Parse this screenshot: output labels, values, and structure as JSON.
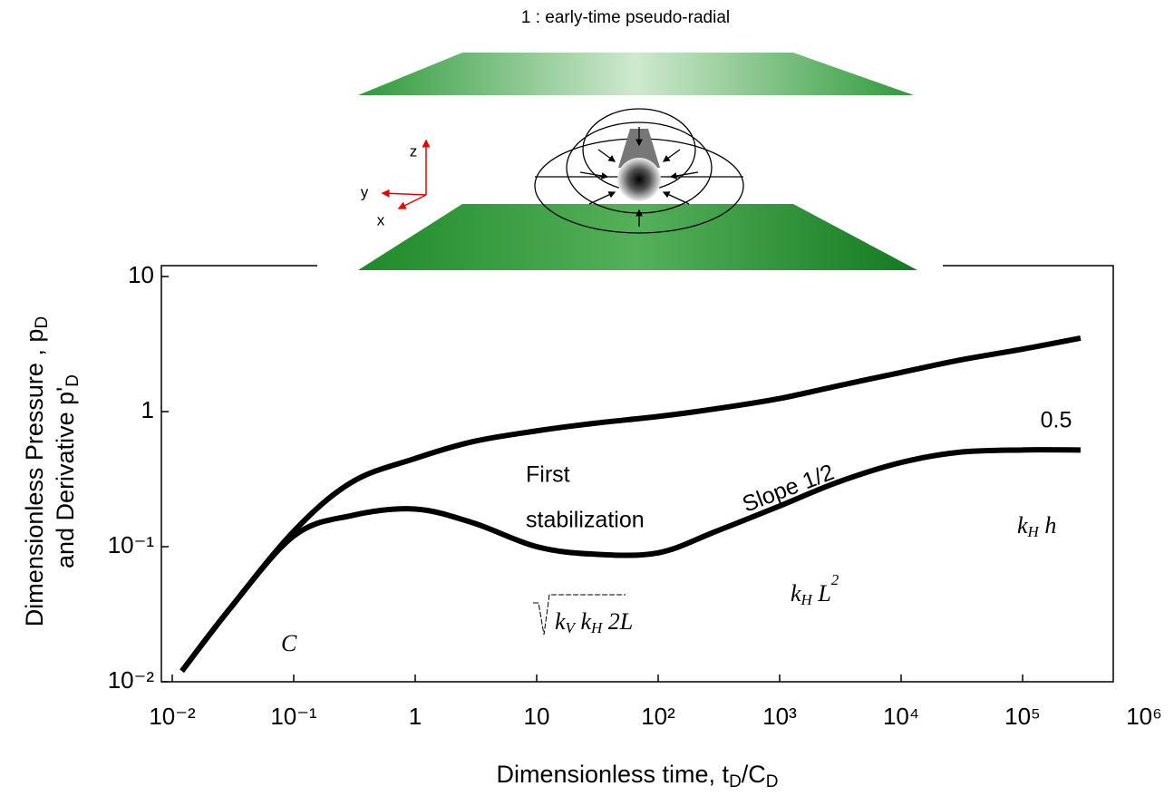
{
  "diagram": {
    "title": "1 :  early-time  pseudo-radial",
    "axes": [
      "z",
      "y",
      "x"
    ]
  },
  "chart_data": {
    "type": "line",
    "xlabel": [
      "Dimensionless time, t",
      "D",
      "/C",
      "D"
    ],
    "ylabel": [
      [
        "Dimensionless Pressure , p",
        "D"
      ],
      [
        "and Derivative p'",
        "D"
      ]
    ],
    "xscale": "log",
    "yscale": "log",
    "xlim": [
      0.01,
      1000000
    ],
    "ylim": [
      0.01,
      10
    ],
    "xticks": [
      {
        "value": 0.01,
        "label": "10⁻²"
      },
      {
        "value": 0.1,
        "label": "10⁻¹"
      },
      1,
      10,
      {
        "value": 100,
        "label": "10²"
      },
      {
        "value": 1000,
        "label": "10³"
      },
      {
        "value": 10000,
        "label": "10⁴"
      },
      {
        "value": 100000,
        "label": "10⁵"
      },
      {
        "value": 1000000,
        "label": "10⁶"
      }
    ],
    "yticks": [
      {
        "value": 0.01,
        "label": "10⁻²"
      },
      {
        "value": 0.1,
        "label": "10⁻¹"
      },
      1,
      10
    ],
    "x": [
      0.012,
      0.03,
      0.1,
      0.3,
      1,
      3,
      10,
      30,
      100,
      300,
      1000,
      3000,
      10000,
      30000,
      100000,
      300000
    ],
    "series": [
      {
        "color": "#000000",
        "values": [
          0.012,
          0.035,
          0.13,
          0.3,
          0.45,
          0.6,
          0.72,
          0.82,
          0.92,
          1.05,
          1.25,
          1.55,
          1.95,
          2.4,
          2.9,
          3.5
        ]
      },
      {
        "color": "#000000",
        "values": [
          0.012,
          0.035,
          0.12,
          0.17,
          0.19,
          0.15,
          0.1,
          0.088,
          0.09,
          0.13,
          0.2,
          0.3,
          0.42,
          0.5,
          0.52,
          0.52
        ]
      }
    ],
    "annotations": [
      "First",
      "stabilization",
      "Slope 1/2",
      "0.5",
      "C"
    ],
    "formulas": [
      [
        "k",
        "H",
        " h"
      ],
      [
        "k",
        "H",
        " L",
        "2"
      ],
      [
        "k",
        "V",
        " k",
        "H",
        " 2L"
      ]
    ]
  }
}
